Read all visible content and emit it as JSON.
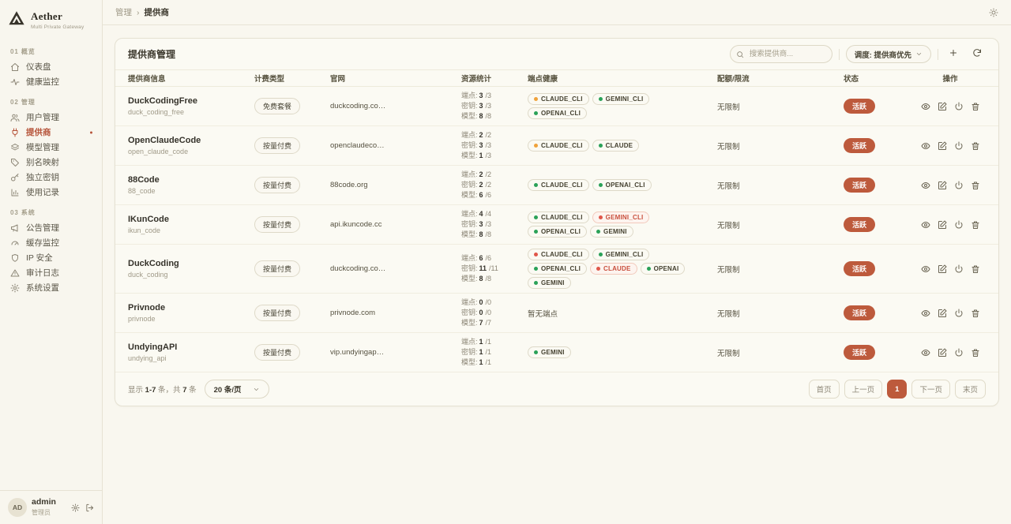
{
  "app": {
    "name": "Aether",
    "tagline": "Multi Private Gateway"
  },
  "breadcrumb": {
    "section": "管理",
    "separator": "›",
    "current": "提供商"
  },
  "topbar": {
    "theme_icon": "sun-icon"
  },
  "colors": {
    "accent": "#bd5a3c",
    "dot_green": "#2aa158",
    "dot_amber": "#efa23b",
    "dot_red": "#e0564a",
    "alert_text": "#c94f3d"
  },
  "sidebar": {
    "sections": [
      {
        "label": "01 概览",
        "items": [
          {
            "icon": "home-icon",
            "label": "仪表盘"
          },
          {
            "icon": "activity-icon",
            "label": "健康监控"
          }
        ]
      },
      {
        "label": "02 管理",
        "items": [
          {
            "icon": "users-icon",
            "label": "用户管理"
          },
          {
            "icon": "plug-icon",
            "label": "提供商",
            "active": true
          },
          {
            "icon": "layers-icon",
            "label": "模型管理"
          },
          {
            "icon": "tag-icon",
            "label": "别名映射"
          },
          {
            "icon": "key-icon",
            "label": "独立密钥"
          },
          {
            "icon": "chart-icon",
            "label": "使用记录"
          }
        ]
      },
      {
        "label": "03 系统",
        "items": [
          {
            "icon": "megaphone-icon",
            "label": "公告管理"
          },
          {
            "icon": "gauge-icon",
            "label": "缓存监控"
          },
          {
            "icon": "shield-icon",
            "label": "IP 安全"
          },
          {
            "icon": "alert-icon",
            "label": "审计日志"
          },
          {
            "icon": "gear-icon",
            "label": "系统设置"
          }
        ]
      }
    ],
    "user": {
      "avatar": "AD",
      "name": "admin",
      "role": "管理员"
    }
  },
  "card": {
    "title": "提供商管理",
    "search_placeholder": "搜索提供商...",
    "sort_label": "调度: 提供商优先"
  },
  "table": {
    "headers": [
      "提供商信息",
      "计费类型",
      "官网",
      "资源统计",
      "端点健康",
      "配额/限流",
      "状态",
      "操作"
    ],
    "stats_labels": {
      "endpoint": "端点:",
      "key": "密钥:",
      "model": "模型:"
    },
    "action_icons": [
      {
        "name": "view",
        "icon": "eye-icon"
      },
      {
        "name": "edit",
        "icon": "edit-icon"
      },
      {
        "name": "toggle",
        "icon": "power-icon"
      },
      {
        "name": "delete",
        "icon": "trash-icon"
      }
    ],
    "rows": [
      {
        "name": "DuckCodingFree",
        "code": "duck_coding_free",
        "billing": "免费套餐",
        "website": "duckcoding.co…",
        "stats": {
          "endpoint": [
            "3",
            "/3"
          ],
          "key": [
            "3",
            "/3"
          ],
          "model": [
            "8",
            "/8"
          ]
        },
        "health": [
          {
            "label": "CLAUDE_CLI",
            "dot": "amber"
          },
          {
            "label": "GEMINI_CLI",
            "dot": "green"
          },
          {
            "label": "OPENAI_CLI",
            "dot": "green"
          }
        ],
        "quota": "无限制",
        "status": "活跃"
      },
      {
        "name": "OpenClaudeCode",
        "code": "open_claude_code",
        "billing": "按量付费",
        "website": "openclaudeco…",
        "stats": {
          "endpoint": [
            "2",
            "/2"
          ],
          "key": [
            "3",
            "/3"
          ],
          "model": [
            "1",
            "/3"
          ]
        },
        "health": [
          {
            "label": "CLAUDE_CLI",
            "dot": "amber"
          },
          {
            "label": "CLAUDE",
            "dot": "green"
          }
        ],
        "quota": "无限制",
        "status": "活跃"
      },
      {
        "name": "88Code",
        "code": "88_code",
        "billing": "按量付费",
        "website": "88code.org",
        "stats": {
          "endpoint": [
            "2",
            "/2"
          ],
          "key": [
            "2",
            "/2"
          ],
          "model": [
            "6",
            "/6"
          ]
        },
        "health": [
          {
            "label": "CLAUDE_CLI",
            "dot": "green"
          },
          {
            "label": "OPENAI_CLI",
            "dot": "green"
          }
        ],
        "quota": "无限制",
        "status": "活跃"
      },
      {
        "name": "IKunCode",
        "code": "ikun_code",
        "billing": "按量付费",
        "website": "api.ikuncode.cc",
        "stats": {
          "endpoint": [
            "4",
            "/4"
          ],
          "key": [
            "3",
            "/3"
          ],
          "model": [
            "8",
            "/8"
          ]
        },
        "health": [
          {
            "label": "CLAUDE_CLI",
            "dot": "green"
          },
          {
            "label": "GEMINI_CLI",
            "dot": "red",
            "alert": true
          },
          {
            "label": "OPENAI_CLI",
            "dot": "green"
          },
          {
            "label": "GEMINI",
            "dot": "green"
          }
        ],
        "quota": "无限制",
        "status": "活跃"
      },
      {
        "name": "DuckCoding",
        "code": "duck_coding",
        "billing": "按量付费",
        "website": "duckcoding.co…",
        "stats": {
          "endpoint": [
            "6",
            "/6"
          ],
          "key": [
            "11",
            "/11"
          ],
          "model": [
            "8",
            "/8"
          ]
        },
        "health": [
          {
            "label": "CLAUDE_CLI",
            "dot": "red"
          },
          {
            "label": "GEMINI_CLI",
            "dot": "green"
          },
          {
            "label": "OPENAI_CLI",
            "dot": "green"
          },
          {
            "label": "CLAUDE",
            "dot": "red",
            "alert": true
          },
          {
            "label": "OPENAI",
            "dot": "green"
          },
          {
            "label": "GEMINI",
            "dot": "green"
          }
        ],
        "quota": "无限制",
        "status": "活跃"
      },
      {
        "name": "Privnode",
        "code": "privnode",
        "billing": "按量付费",
        "website": "privnode.com",
        "stats": {
          "endpoint": [
            "0",
            "/0"
          ],
          "key": [
            "0",
            "/0"
          ],
          "model": [
            "7",
            "/7"
          ]
        },
        "health": [],
        "health_empty": "暂无端点",
        "quota": "无限制",
        "status": "活跃"
      },
      {
        "name": "UndyingAPI",
        "code": "undying_api",
        "billing": "按量付费",
        "website": "vip.undyingap…",
        "stats": {
          "endpoint": [
            "1",
            "/1"
          ],
          "key": [
            "1",
            "/1"
          ],
          "model": [
            "1",
            "/1"
          ]
        },
        "health": [
          {
            "label": "GEMINI",
            "dot": "green"
          }
        ],
        "quota": "无限制",
        "status": "活跃"
      }
    ]
  },
  "footer": {
    "showing": {
      "prefix": "显示",
      "range": "1-7",
      "mid": "条，共",
      "total": "7",
      "suffix": "条"
    },
    "page_size": "20 条/页",
    "pagination": [
      {
        "name": "first",
        "label": "首页"
      },
      {
        "name": "prev",
        "label": "上一页"
      },
      {
        "name": "page-1",
        "label": "1",
        "active": true
      },
      {
        "name": "next",
        "label": "下一页"
      },
      {
        "name": "last",
        "label": "末页"
      }
    ]
  }
}
